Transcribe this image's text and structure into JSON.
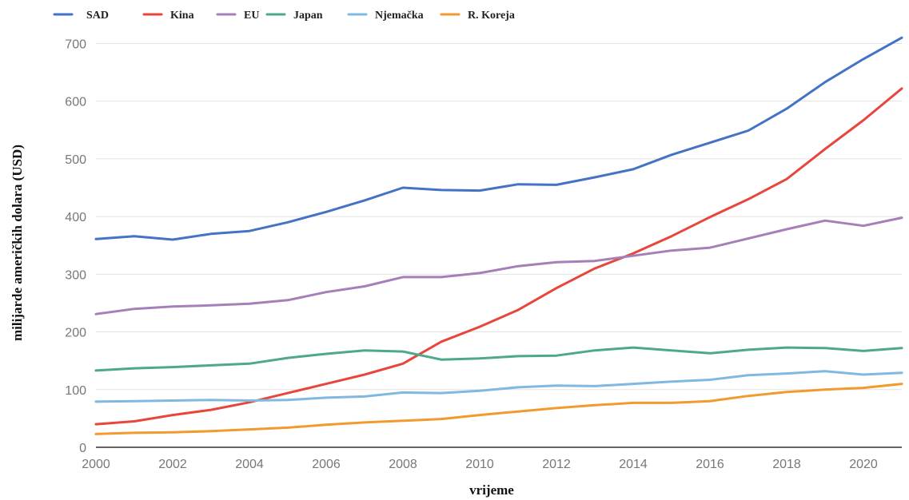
{
  "chart_data": {
    "type": "line",
    "title": "",
    "xlabel": "vrijeme",
    "ylabel": "milijarde američkih dolara (USD)",
    "xlim": [
      2000,
      2021
    ],
    "ylim": [
      0,
      720
    ],
    "x_ticks": [
      2000,
      2002,
      2004,
      2006,
      2008,
      2010,
      2012,
      2014,
      2016,
      2018,
      2020
    ],
    "y_ticks": [
      0,
      100,
      200,
      300,
      400,
      500,
      600,
      700
    ],
    "grid": "horizontal",
    "legend_position": "top",
    "x": [
      2000,
      2001,
      2002,
      2003,
      2004,
      2005,
      2006,
      2007,
      2008,
      2009,
      2010,
      2011,
      2012,
      2013,
      2014,
      2015,
      2016,
      2017,
      2018,
      2019,
      2020,
      2021
    ],
    "series": [
      {
        "name": "SAD",
        "color": "#4472c4",
        "values": [
          361,
          366,
          360,
          370,
          375,
          390,
          408,
          428,
          450,
          446,
          445,
          456,
          455,
          468,
          482,
          507,
          528,
          549,
          587,
          633,
          673,
          710
        ]
      },
      {
        "name": "Kina",
        "color": "#e8453c",
        "values": [
          40,
          45,
          56,
          65,
          78,
          94,
          110,
          126,
          145,
          183,
          209,
          238,
          276,
          310,
          336,
          366,
          399,
          430,
          465,
          517,
          567,
          622
        ]
      },
      {
        "name": "EU",
        "color": "#a67fb9",
        "values": [
          231,
          240,
          244,
          246,
          249,
          255,
          269,
          279,
          295,
          295,
          302,
          314,
          321,
          323,
          332,
          341,
          346,
          362,
          378,
          393,
          384,
          398
        ]
      },
      {
        "name": "Japan",
        "color": "#4ea88a",
        "values": [
          133,
          137,
          139,
          142,
          145,
          155,
          162,
          168,
          166,
          152,
          154,
          158,
          159,
          168,
          173,
          168,
          163,
          169,
          173,
          172,
          167,
          172
        ]
      },
      {
        "name": "Njemačka",
        "color": "#7fb8e0",
        "values": [
          79,
          80,
          81,
          82,
          81,
          82,
          86,
          88,
          95,
          94,
          98,
          104,
          107,
          106,
          110,
          114,
          117,
          125,
          128,
          132,
          126,
          129
        ]
      },
      {
        "name": "R. Koreja",
        "color": "#f29a2e",
        "values": [
          23,
          25,
          26,
          28,
          31,
          34,
          39,
          43,
          46,
          49,
          56,
          62,
          68,
          73,
          77,
          77,
          80,
          89,
          96,
          100,
          103,
          110
        ]
      }
    ]
  }
}
